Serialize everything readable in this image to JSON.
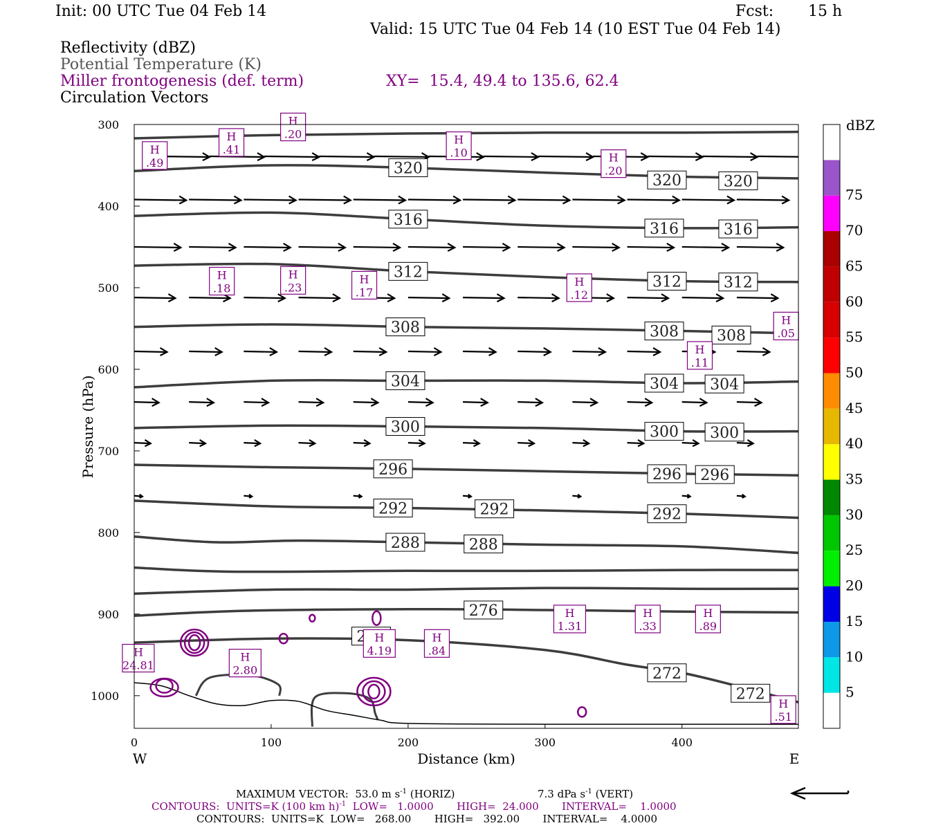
{
  "header": {
    "init": "Init: 00 UTC Tue 04 Feb 14",
    "fcst_label": "Fcst:",
    "fcst_value": "15 h",
    "valid": "Valid: 15 UTC Tue 04 Feb 14 (10 EST Tue 04 Feb 14)",
    "fields": [
      "Reflectivity (dBZ)",
      "Potential Temperature (K)",
      "Miller frontogenesis (def. term)",
      "Circulation Vectors"
    ],
    "xy": "XY=  15.4, 49.4 to 135.6, 62.4"
  },
  "colors": {
    "theta": "#3d3d3d",
    "frontogenesis": "#800080",
    "vectors": "#000000"
  },
  "chart_data": {
    "type": "line",
    "title": "",
    "xlabel": "Distance (km)",
    "ylabel": "Pressure (hPa)",
    "xlim": [
      0,
      485
    ],
    "ylim": [
      1040,
      300
    ],
    "x_ticks": [
      "0",
      "100",
      "200",
      "300",
      "400"
    ],
    "y_ticks": [
      "300",
      "400",
      "500",
      "600",
      "700",
      "800",
      "900",
      "1000"
    ],
    "x_end_labels": {
      "left": "W",
      "right": "E"
    },
    "theta_contours": [
      {
        "value": "",
        "points": [
          [
            0,
            317
          ],
          [
            100,
            313
          ],
          [
            200,
            311
          ],
          [
            300,
            310
          ],
          [
            400,
            310
          ],
          [
            485,
            309
          ]
        ]
      },
      {
        "value": "320",
        "points": [
          [
            0,
            357
          ],
          [
            100,
            350
          ],
          [
            200,
            353
          ],
          [
            300,
            359
          ],
          [
            400,
            364
          ],
          [
            485,
            366
          ]
        ]
      },
      {
        "value": "316",
        "points": [
          [
            0,
            412
          ],
          [
            100,
            408
          ],
          [
            200,
            416
          ],
          [
            300,
            424
          ],
          [
            400,
            427
          ],
          [
            485,
            426
          ]
        ]
      },
      {
        "value": "312",
        "points": [
          [
            0,
            473
          ],
          [
            100,
            471
          ],
          [
            200,
            480
          ],
          [
            300,
            487
          ],
          [
            400,
            492
          ],
          [
            485,
            493
          ]
        ]
      },
      {
        "value": "308",
        "points": [
          [
            0,
            548
          ],
          [
            100,
            545
          ],
          [
            200,
            548
          ],
          [
            300,
            550
          ],
          [
            400,
            553
          ],
          [
            485,
            556
          ]
        ]
      },
      {
        "value": "304",
        "points": [
          [
            0,
            622
          ],
          [
            100,
            614
          ],
          [
            200,
            614
          ],
          [
            300,
            614
          ],
          [
            400,
            617
          ],
          [
            485,
            615
          ]
        ]
      },
      {
        "value": "300",
        "points": [
          [
            0,
            672
          ],
          [
            100,
            669
          ],
          [
            200,
            670
          ],
          [
            300,
            672
          ],
          [
            400,
            676
          ],
          [
            485,
            676
          ]
        ]
      },
      {
        "value": "296",
        "points": [
          [
            0,
            717
          ],
          [
            100,
            720
          ],
          [
            200,
            722
          ],
          [
            300,
            725
          ],
          [
            400,
            728
          ],
          [
            485,
            730
          ]
        ]
      },
      {
        "value": "292",
        "points": [
          [
            0,
            761
          ],
          [
            100,
            768
          ],
          [
            200,
            770
          ],
          [
            300,
            773
          ],
          [
            400,
            777
          ],
          [
            485,
            782
          ]
        ]
      },
      {
        "value": "288",
        "points": [
          [
            0,
            805
          ],
          [
            60,
            812
          ],
          [
            120,
            810
          ],
          [
            200,
            812
          ],
          [
            300,
            815
          ],
          [
            400,
            817
          ],
          [
            485,
            825
          ]
        ]
      },
      {
        "value": "",
        "points": [
          [
            0,
            843
          ],
          [
            70,
            848
          ],
          [
            200,
            847
          ],
          [
            300,
            847
          ],
          [
            400,
            846
          ],
          [
            485,
            846
          ]
        ]
      },
      {
        "value": "",
        "points": [
          [
            0,
            875
          ],
          [
            100,
            870
          ],
          [
            200,
            870
          ],
          [
            300,
            868
          ],
          [
            400,
            869
          ],
          [
            485,
            869
          ]
        ]
      },
      {
        "value": "276",
        "points": [
          [
            0,
            902
          ],
          [
            80,
            896
          ],
          [
            200,
            894
          ],
          [
            300,
            895
          ],
          [
            400,
            897
          ],
          [
            485,
            898
          ]
        ]
      },
      {
        "value": "272",
        "points": [
          [
            0,
            935
          ],
          [
            100,
            930
          ],
          [
            200,
            932
          ],
          [
            300,
            944
          ],
          [
            360,
            962
          ],
          [
            400,
            972
          ],
          [
            440,
            988
          ],
          [
            485,
            1008
          ]
        ]
      }
    ],
    "contour_labels": [
      {
        "text": "320",
        "x": 200,
        "p": 353
      },
      {
        "text": "320",
        "x": 389,
        "p": 368
      },
      {
        "text": "320",
        "x": 441,
        "p": 369
      },
      {
        "text": "316",
        "x": 200,
        "p": 416
      },
      {
        "text": "316",
        "x": 387,
        "p": 427
      },
      {
        "text": "316",
        "x": 441,
        "p": 428
      },
      {
        "text": "312",
        "x": 200,
        "p": 480
      },
      {
        "text": "312",
        "x": 389,
        "p": 492
      },
      {
        "text": "312",
        "x": 441,
        "p": 493
      },
      {
        "text": "308",
        "x": 198,
        "p": 548
      },
      {
        "text": "308",
        "x": 387,
        "p": 553
      },
      {
        "text": "308",
        "x": 436,
        "p": 558
      },
      {
        "text": "304",
        "x": 198,
        "p": 614
      },
      {
        "text": "304",
        "x": 387,
        "p": 617
      },
      {
        "text": "304",
        "x": 431,
        "p": 618
      },
      {
        "text": "300",
        "x": 198,
        "p": 670
      },
      {
        "text": "300",
        "x": 387,
        "p": 676
      },
      {
        "text": "300",
        "x": 431,
        "p": 677
      },
      {
        "text": "296",
        "x": 189,
        "p": 722
      },
      {
        "text": "296",
        "x": 389,
        "p": 728
      },
      {
        "text": "296",
        "x": 424,
        "p": 729
      },
      {
        "text": "292",
        "x": 189,
        "p": 770
      },
      {
        "text": "292",
        "x": 263,
        "p": 771
      },
      {
        "text": "292",
        "x": 389,
        "p": 777
      },
      {
        "text": "288",
        "x": 198,
        "p": 812
      },
      {
        "text": "288",
        "x": 255,
        "p": 814
      },
      {
        "text": "276",
        "x": 255,
        "p": 895
      },
      {
        "text": "272",
        "x": 173,
        "p": 927
      },
      {
        "text": "272",
        "x": 389,
        "p": 972
      },
      {
        "text": "272",
        "x": 450,
        "p": 997
      }
    ],
    "frontogenesis_highs": [
      {
        "value": ".49",
        "x": 15,
        "p": 338
      },
      {
        "value": ".41",
        "x": 71,
        "p": 322
      },
      {
        "value": ".20",
        "x": 116,
        "p": 303
      },
      {
        "value": ".10",
        "x": 237,
        "p": 326
      },
      {
        "value": ".20",
        "x": 350,
        "p": 348
      },
      {
        "value": ".18",
        "x": 64,
        "p": 492
      },
      {
        "value": ".23",
        "x": 116,
        "p": 491
      },
      {
        "value": ".17",
        "x": 168,
        "p": 497
      },
      {
        "value": ".12",
        "x": 325,
        "p": 500
      },
      {
        "value": ".05",
        "x": 476,
        "p": 547
      },
      {
        "value": ".11",
        "x": 413,
        "p": 583
      },
      {
        "value": "1.31",
        "x": 318,
        "p": 906
      },
      {
        "value": ".33",
        "x": 375,
        "p": 906
      },
      {
        "value": ".89",
        "x": 419,
        "p": 906
      },
      {
        "value": ".84",
        "x": 221,
        "p": 936
      },
      {
        "value": "4.19",
        "x": 179,
        "p": 936
      },
      {
        "value": "2.80",
        "x": 81,
        "p": 960
      },
      {
        "value": "24.81",
        "x": 3,
        "p": 954
      },
      {
        "value": ".51",
        "x": 474,
        "p": 1017
      }
    ],
    "vector_rows": [
      {
        "p": 339,
        "dx": 40,
        "xs": [
          15,
          55,
          95,
          135,
          175,
          215,
          255,
          295,
          335,
          375,
          415,
          455
        ]
      },
      {
        "p": 392,
        "dx": 38,
        "xs": [
          0,
          40,
          80,
          120,
          160,
          200,
          240,
          280,
          320,
          360,
          400,
          440
        ]
      },
      {
        "p": 450,
        "dx": 34,
        "xs": [
          0,
          40,
          80,
          120,
          160,
          200,
          240,
          280,
          320,
          360,
          400,
          440
        ]
      },
      {
        "p": 512,
        "dx": 30,
        "xs": [
          0,
          40,
          80,
          120,
          160,
          200,
          240,
          280,
          320,
          360,
          400,
          440
        ]
      },
      {
        "p": 578,
        "dx": 24,
        "xs": [
          0,
          40,
          80,
          120,
          160,
          200,
          240,
          280,
          320,
          360,
          400,
          440
        ]
      },
      {
        "p": 640,
        "dx": 18,
        "xs": [
          0,
          40,
          80,
          120,
          160,
          200,
          240,
          280,
          320,
          360,
          400,
          440
        ]
      },
      {
        "p": 690,
        "dx": 12,
        "xs": [
          0,
          40,
          80,
          120,
          160,
          200,
          240,
          280,
          320,
          360,
          400,
          440
        ]
      },
      {
        "p": 755,
        "dx": 6,
        "xs": [
          0,
          80,
          160,
          240,
          320,
          400,
          440
        ]
      }
    ],
    "colorbar": {
      "unit": "dBZ",
      "bins": [
        {
          "label": "",
          "color": "#ffffff"
        },
        {
          "label": "5",
          "color": "#00e5e5"
        },
        {
          "label": "10",
          "color": "#0b99e8"
        },
        {
          "label": "15",
          "color": "#0000e6"
        },
        {
          "label": "20",
          "color": "#00ef00"
        },
        {
          "label": "25",
          "color": "#00c800"
        },
        {
          "label": "30",
          "color": "#008800"
        },
        {
          "label": "35",
          "color": "#ffff00"
        },
        {
          "label": "40",
          "color": "#e6b800"
        },
        {
          "label": "45",
          "color": "#ff8c00"
        },
        {
          "label": "50",
          "color": "#ff0000"
        },
        {
          "label": "55",
          "color": "#d60000"
        },
        {
          "label": "60",
          "color": "#c00000"
        },
        {
          "label": "65",
          "color": "#aa0000"
        },
        {
          "label": "70",
          "color": "#ff00ff"
        },
        {
          "label": "75",
          "color": "#9955c9"
        },
        {
          "label": "",
          "color": "#ffffff"
        }
      ]
    }
  },
  "footer": {
    "max_vector_prefix": "MAXIMUM VECTOR:  53.0 m s",
    "max_vector_horiz": "(HORIZ)",
    "max_vector_vert_prefix": "7.3 dPa s",
    "max_vector_vert": "(VERT)",
    "sup": "-1",
    "contours1_prefix": "CONTOURS:  UNITS=K (100 km h)",
    "contours1_rest": "  LOW=   1.0000       HIGH=  24.000       INTERVAL=    1.0000",
    "contours2": "CONTOURS:  UNITS=K  LOW=   268.00       HIGH=   392.00       INTERVAL=    4.0000"
  }
}
